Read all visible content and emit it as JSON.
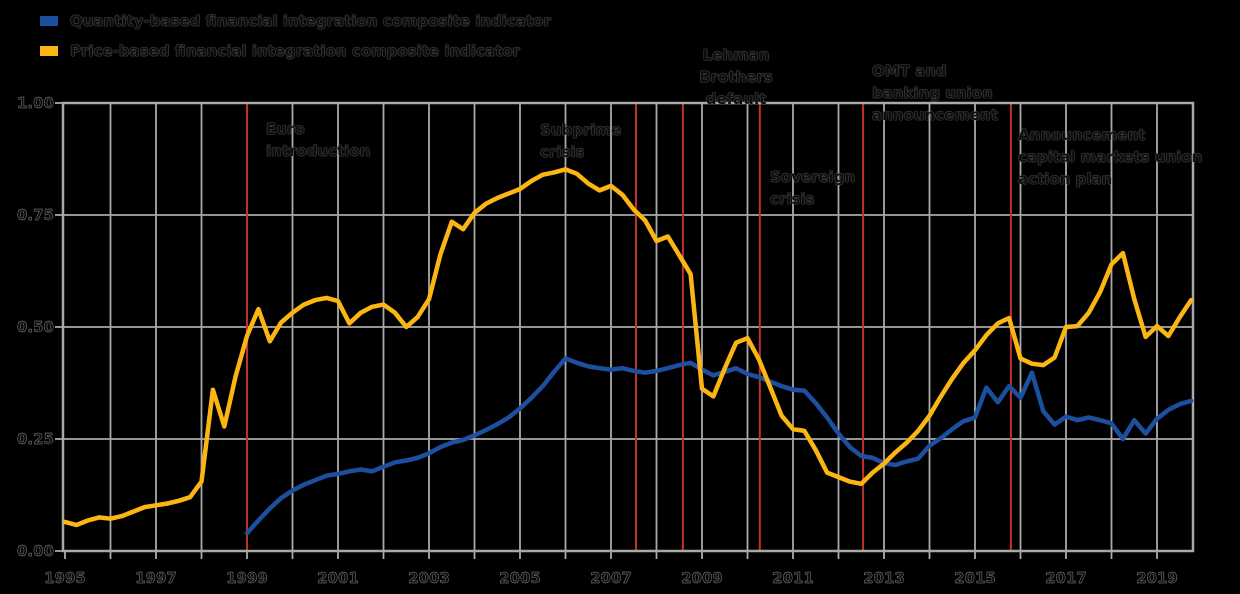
{
  "legend": {
    "items": [
      {
        "id": "quantity",
        "label": "Quantity-based financial integration composite indicator",
        "color": "#1d4f9f"
      },
      {
        "id": "price",
        "label": "Price-based financial integration composite indicator",
        "color": "#fcb614"
      }
    ]
  },
  "chart_data": {
    "type": "line",
    "title": "",
    "x_axis": {
      "range": [
        1995,
        2019.8
      ],
      "tick_years": [
        1995,
        1997,
        1999,
        2001,
        2003,
        2005,
        2007,
        2009,
        2011,
        2013,
        2015,
        2017,
        2019
      ],
      "gridline_interval_years": 1
    },
    "y_axis": {
      "range": [
        0,
        1
      ],
      "tick_values": [
        1.0,
        0.75,
        0.5,
        0.25,
        0.0
      ],
      "tick_labels": [
        "1.00",
        "0.75",
        "0.50",
        "0.25",
        "0.00"
      ],
      "gridlines": [
        0.75,
        0.5,
        0.25
      ]
    },
    "events": [
      {
        "id": "euro",
        "year": 1999.0,
        "label_lines": [
          "Euro",
          "introduction"
        ],
        "line_color": "#c0332b"
      },
      {
        "id": "subprime",
        "year": 2007.55,
        "label_lines": [
          "Subprime",
          "crisis"
        ],
        "line_color": "#c0332b"
      },
      {
        "id": "lehman",
        "year": 2008.58,
        "label_lines": [
          "Lehman",
          "Brothers",
          "default"
        ],
        "line_color": "#c0332b"
      },
      {
        "id": "sovereign",
        "year": 2010.27,
        "label_lines": [
          "Sovereign",
          "crisis"
        ],
        "line_color": "#c0332b"
      },
      {
        "id": "omt",
        "year": 2012.54,
        "label_lines": [
          "OMT and",
          "banking union",
          "announcement"
        ],
        "line_color": "#c0332b"
      },
      {
        "id": "cmu",
        "year": 2015.79,
        "label_lines": [
          "Announcement",
          "capital markets union",
          "action plan"
        ],
        "line_color": "#c0332b"
      }
    ],
    "series": [
      {
        "name": "Quantity-based financial integration composite indicator",
        "color": "#1d4f9f",
        "points": [
          [
            1999.0,
            0.04
          ],
          [
            1999.25,
            0.068
          ],
          [
            1999.5,
            0.095
          ],
          [
            1999.75,
            0.118
          ],
          [
            2000.0,
            0.135
          ],
          [
            2000.25,
            0.148
          ],
          [
            2000.5,
            0.158
          ],
          [
            2000.75,
            0.168
          ],
          [
            2001.0,
            0.172
          ],
          [
            2001.25,
            0.178
          ],
          [
            2001.5,
            0.182
          ],
          [
            2001.75,
            0.178
          ],
          [
            2002.0,
            0.188
          ],
          [
            2002.25,
            0.198
          ],
          [
            2002.5,
            0.202
          ],
          [
            2002.75,
            0.208
          ],
          [
            2003.0,
            0.218
          ],
          [
            2003.25,
            0.232
          ],
          [
            2003.5,
            0.242
          ],
          [
            2003.75,
            0.248
          ],
          [
            2004.0,
            0.258
          ],
          [
            2004.25,
            0.27
          ],
          [
            2004.5,
            0.283
          ],
          [
            2004.75,
            0.298
          ],
          [
            2005.0,
            0.318
          ],
          [
            2005.25,
            0.342
          ],
          [
            2005.5,
            0.368
          ],
          [
            2005.75,
            0.4
          ],
          [
            2006.0,
            0.43
          ],
          [
            2006.25,
            0.42
          ],
          [
            2006.5,
            0.412
          ],
          [
            2006.75,
            0.408
          ],
          [
            2007.0,
            0.405
          ],
          [
            2007.25,
            0.408
          ],
          [
            2007.5,
            0.402
          ],
          [
            2007.75,
            0.398
          ],
          [
            2008.0,
            0.402
          ],
          [
            2008.25,
            0.408
          ],
          [
            2008.5,
            0.415
          ],
          [
            2008.75,
            0.42
          ],
          [
            2009.0,
            0.405
          ],
          [
            2009.25,
            0.392
          ],
          [
            2009.5,
            0.4
          ],
          [
            2009.75,
            0.408
          ],
          [
            2010.0,
            0.395
          ],
          [
            2010.25,
            0.388
          ],
          [
            2010.5,
            0.378
          ],
          [
            2010.75,
            0.368
          ],
          [
            2011.0,
            0.36
          ],
          [
            2011.25,
            0.358
          ],
          [
            2011.5,
            0.33
          ],
          [
            2011.75,
            0.298
          ],
          [
            2012.0,
            0.262
          ],
          [
            2012.25,
            0.232
          ],
          [
            2012.5,
            0.212
          ],
          [
            2012.75,
            0.208
          ],
          [
            2013.0,
            0.196
          ],
          [
            2013.25,
            0.192
          ],
          [
            2013.5,
            0.2
          ],
          [
            2013.75,
            0.206
          ],
          [
            2014.0,
            0.235
          ],
          [
            2014.25,
            0.252
          ],
          [
            2014.5,
            0.272
          ],
          [
            2014.75,
            0.29
          ],
          [
            2015.0,
            0.298
          ],
          [
            2015.25,
            0.365
          ],
          [
            2015.5,
            0.332
          ],
          [
            2015.75,
            0.368
          ],
          [
            2016.0,
            0.342
          ],
          [
            2016.25,
            0.398
          ],
          [
            2016.5,
            0.312
          ],
          [
            2016.75,
            0.282
          ],
          [
            2017.0,
            0.3
          ],
          [
            2017.25,
            0.292
          ],
          [
            2017.5,
            0.298
          ],
          [
            2017.75,
            0.292
          ],
          [
            2018.0,
            0.285
          ],
          [
            2018.25,
            0.25
          ],
          [
            2018.5,
            0.292
          ],
          [
            2018.75,
            0.262
          ],
          [
            2019.0,
            0.295
          ],
          [
            2019.25,
            0.315
          ],
          [
            2019.5,
            0.328
          ],
          [
            2019.75,
            0.335
          ]
        ]
      },
      {
        "name": "Price-based financial integration composite indicator",
        "color": "#fcb614",
        "points": [
          [
            1995.0,
            0.065
          ],
          [
            1995.25,
            0.058
          ],
          [
            1995.5,
            0.068
          ],
          [
            1995.75,
            0.075
          ],
          [
            1996.0,
            0.072
          ],
          [
            1996.25,
            0.078
          ],
          [
            1996.5,
            0.088
          ],
          [
            1996.75,
            0.098
          ],
          [
            1997.0,
            0.102
          ],
          [
            1997.25,
            0.106
          ],
          [
            1997.5,
            0.112
          ],
          [
            1997.75,
            0.12
          ],
          [
            1998.0,
            0.155
          ],
          [
            1998.25,
            0.36
          ],
          [
            1998.5,
            0.278
          ],
          [
            1998.75,
            0.39
          ],
          [
            1999.0,
            0.48
          ],
          [
            1999.25,
            0.54
          ],
          [
            1999.5,
            0.468
          ],
          [
            1999.75,
            0.51
          ],
          [
            2000.0,
            0.532
          ],
          [
            2000.25,
            0.55
          ],
          [
            2000.5,
            0.56
          ],
          [
            2000.75,
            0.565
          ],
          [
            2001.0,
            0.558
          ],
          [
            2001.25,
            0.508
          ],
          [
            2001.5,
            0.532
          ],
          [
            2001.75,
            0.545
          ],
          [
            2002.0,
            0.55
          ],
          [
            2002.25,
            0.532
          ],
          [
            2002.5,
            0.5
          ],
          [
            2002.75,
            0.522
          ],
          [
            2003.0,
            0.562
          ],
          [
            2003.25,
            0.662
          ],
          [
            2003.5,
            0.735
          ],
          [
            2003.75,
            0.718
          ],
          [
            2004.0,
            0.755
          ],
          [
            2004.25,
            0.775
          ],
          [
            2004.5,
            0.788
          ],
          [
            2004.75,
            0.798
          ],
          [
            2005.0,
            0.808
          ],
          [
            2005.25,
            0.826
          ],
          [
            2005.5,
            0.84
          ],
          [
            2005.75,
            0.845
          ],
          [
            2006.0,
            0.852
          ],
          [
            2006.25,
            0.842
          ],
          [
            2006.5,
            0.82
          ],
          [
            2006.75,
            0.805
          ],
          [
            2007.0,
            0.815
          ],
          [
            2007.25,
            0.795
          ],
          [
            2007.5,
            0.762
          ],
          [
            2007.75,
            0.738
          ],
          [
            2008.0,
            0.692
          ],
          [
            2008.25,
            0.702
          ],
          [
            2008.5,
            0.66
          ],
          [
            2008.75,
            0.618
          ],
          [
            2009.0,
            0.362
          ],
          [
            2009.25,
            0.345
          ],
          [
            2009.5,
            0.408
          ],
          [
            2009.75,
            0.465
          ],
          [
            2010.0,
            0.475
          ],
          [
            2010.25,
            0.428
          ],
          [
            2010.5,
            0.365
          ],
          [
            2010.75,
            0.302
          ],
          [
            2011.0,
            0.272
          ],
          [
            2011.25,
            0.268
          ],
          [
            2011.5,
            0.225
          ],
          [
            2011.75,
            0.175
          ],
          [
            2012.0,
            0.165
          ],
          [
            2012.25,
            0.155
          ],
          [
            2012.5,
            0.15
          ],
          [
            2012.75,
            0.175
          ],
          [
            2013.0,
            0.195
          ],
          [
            2013.25,
            0.22
          ],
          [
            2013.5,
            0.242
          ],
          [
            2013.75,
            0.268
          ],
          [
            2014.0,
            0.302
          ],
          [
            2014.25,
            0.345
          ],
          [
            2014.5,
            0.385
          ],
          [
            2014.75,
            0.42
          ],
          [
            2015.0,
            0.448
          ],
          [
            2015.25,
            0.482
          ],
          [
            2015.5,
            0.508
          ],
          [
            2015.75,
            0.52
          ],
          [
            2016.0,
            0.43
          ],
          [
            2016.25,
            0.418
          ],
          [
            2016.5,
            0.415
          ],
          [
            2016.75,
            0.432
          ],
          [
            2017.0,
            0.5
          ],
          [
            2017.25,
            0.502
          ],
          [
            2017.5,
            0.532
          ],
          [
            2017.75,
            0.578
          ],
          [
            2018.0,
            0.64
          ],
          [
            2018.25,
            0.665
          ],
          [
            2018.5,
            0.562
          ],
          [
            2018.75,
            0.478
          ],
          [
            2019.0,
            0.502
          ],
          [
            2019.25,
            0.48
          ],
          [
            2019.5,
            0.522
          ],
          [
            2019.75,
            0.56
          ]
        ]
      }
    ]
  }
}
